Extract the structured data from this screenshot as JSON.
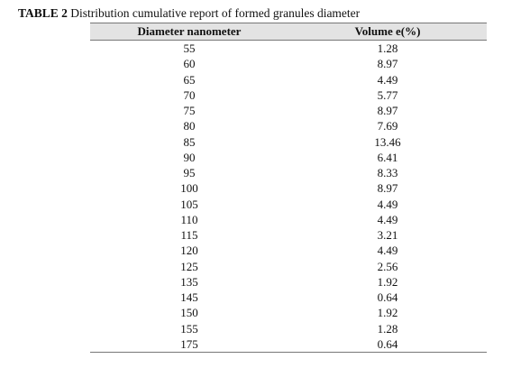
{
  "caption": {
    "label": "TABLE 2",
    "text": "Distribution cumulative report of formed granules diameter"
  },
  "table": {
    "headers": [
      "Diameter nanometer",
      "Volume e(%)"
    ],
    "rows": [
      [
        "55",
        "1.28"
      ],
      [
        "60",
        "8.97"
      ],
      [
        "65",
        "4.49"
      ],
      [
        "70",
        "5.77"
      ],
      [
        "75",
        "8.97"
      ],
      [
        "80",
        "7.69"
      ],
      [
        "85",
        "13.46"
      ],
      [
        "90",
        "6.41"
      ],
      [
        "95",
        "8.33"
      ],
      [
        "100",
        "8.97"
      ],
      [
        "105",
        "4.49"
      ],
      [
        "110",
        "4.49"
      ],
      [
        "115",
        "3.21"
      ],
      [
        "120",
        "4.49"
      ],
      [
        "125",
        "2.56"
      ],
      [
        "135",
        "1.92"
      ],
      [
        "145",
        "0.64"
      ],
      [
        "150",
        "1.92"
      ],
      [
        "155",
        "1.28"
      ],
      [
        "175",
        "0.64"
      ]
    ]
  }
}
